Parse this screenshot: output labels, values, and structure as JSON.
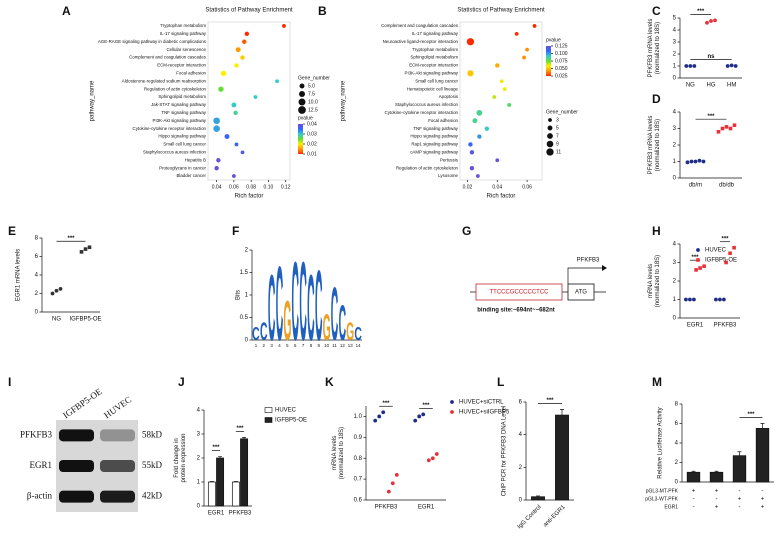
{
  "chart_data": [
    {
      "panel": "A",
      "type": "bubble",
      "title": "Statistics of Pathway Enrichment",
      "ylabel": "pathway_name",
      "xlabel": "Rich factor",
      "categories": [
        "Tryptophan metabolism",
        "IL-17 signaling pathway",
        "AGE-RAGE signaling pathway in diabetic complications",
        "Cellular senescence",
        "Complement and coagulation cascades",
        "ECM-receptor interaction",
        "Focal adhesion",
        "Aldosterone-regulated sodium reabsorption",
        "Regulation of actin cytoskeleton",
        "Sphingolipid metabolism",
        "Jak-STAT signaling pathway",
        "TNF signaling pathway",
        "PI3K-Akt signaling pathway",
        "Cytokine-cytokine receptor interaction",
        "Hippo signaling pathway",
        "Small cell lung cancer",
        "Staphylococcus aureus infection",
        "Hepatitis B",
        "Proteoglycans in cancer",
        "Bladder cancer"
      ],
      "values": [
        0.118,
        0.075,
        0.072,
        0.065,
        0.07,
        0.063,
        0.048,
        0.11,
        0.045,
        0.085,
        0.06,
        0.062,
        0.04,
        0.04,
        0.052,
        0.063,
        0.07,
        0.042,
        0.04,
        0.06
      ],
      "sizes": [
        3,
        4,
        4,
        5,
        4,
        4,
        6,
        3,
        6,
        3,
        5,
        4,
        9,
        9,
        5,
        3,
        3,
        4,
        4,
        3
      ],
      "pvalues": [
        0.01,
        0.008,
        0.012,
        0.015,
        0.018,
        0.02,
        0.02,
        0.03,
        0.025,
        0.03,
        0.03,
        0.028,
        0.032,
        0.032,
        0.035,
        0.036,
        0.038,
        0.04,
        0.042,
        0.045
      ],
      "xlim": [
        0.03,
        0.125
      ],
      "xticks": [
        0.04,
        0.06,
        0.08,
        {
          "value": 0.1,
          "label": "0.10"
        },
        0.12
      ],
      "size_title": "Gene_number",
      "size_ticks": [
        {
          "value": 5,
          "label": "5.0"
        },
        7.5,
        {
          "value": 10,
          "label": "10.0"
        },
        12.5
      ],
      "color_title": "pvalue",
      "color_ticks": [
        0.04,
        0.03,
        0.02,
        0.01
      ],
      "colorscale": [
        "#ff2a00",
        "#ff9900",
        "#ffee00",
        "#66dd33",
        "#33cccc",
        "#3366ff",
        "#6a4fd8"
      ]
    },
    {
      "panel": "B",
      "type": "bubble",
      "title": "Statistics of Pathway Enrichment",
      "ylabel": "pathway_name",
      "xlabel": "Rich factor",
      "categories": [
        "Complement and coagulation cascades",
        "IL-17 signaling pathway",
        "Neuroactive ligand-receptor interaction",
        "Tryptophan metabolism",
        "Sphingolipid metabolism",
        "ECM-receptor interaction",
        "PI3K-Akt signaling pathway",
        "Small cell lung cancer",
        "Hematopoietic cell lineage",
        "Apoptosis",
        "Staphylococcus aureus infection",
        "Cytokine-cytokine receptor interaction",
        "Focal adhesion",
        "TNF signaling pathway",
        "Hippo signaling pathway",
        "Rap1 signaling pathway",
        "cAMP signaling pathway",
        "Pertussis",
        "Regulation of actin cytoskeleton",
        "Lysosome"
      ],
      "values": [
        0.065,
        0.053,
        0.022,
        0.06,
        0.058,
        0.04,
        0.022,
        0.043,
        0.045,
        0.038,
        0.048,
        0.028,
        0.025,
        0.033,
        0.028,
        0.022,
        0.023,
        0.04,
        0.023,
        0.027
      ],
      "sizes": [
        3,
        3,
        11,
        3,
        3,
        4,
        8,
        3,
        3,
        3,
        3,
        7,
        5,
        4,
        4,
        4,
        4,
        3,
        4,
        3
      ],
      "pvalues": [
        0.005,
        0.01,
        0.02,
        0.04,
        0.04,
        0.045,
        0.05,
        0.06,
        0.06,
        0.065,
        0.08,
        0.085,
        0.085,
        0.09,
        0.1,
        0.11,
        0.12,
        0.125,
        0.13,
        0.135
      ],
      "xlim": [
        0.015,
        0.07
      ],
      "xticks": [
        0.02,
        0.04,
        0.06
      ],
      "size_title": "Gene_number",
      "size_ticks": [
        3,
        5,
        7,
        9,
        11
      ],
      "color_title": "pvalue",
      "color_ticks": [
        0.125,
        {
          "value": 0.1,
          "label": "0.100"
        },
        0.075,
        {
          "value": 0.05,
          "label": "0.050"
        },
        0.025
      ],
      "colorscale": [
        "#ff2a00",
        "#ff9900",
        "#ffee00",
        "#66dd33",
        "#33cccc",
        "#3366ff",
        "#6a4fd8"
      ]
    },
    {
      "panel": "C",
      "type": "dot",
      "ylabel": [
        "PFKFB3 mRNA levels",
        "(normalized to 18S)"
      ],
      "categories": [
        "NG",
        "HG",
        "HM"
      ],
      "colors": [
        "#1f2d8a",
        "#e8313a",
        "#1f2d8a"
      ],
      "values": [
        [
          1,
          1,
          1
        ],
        [
          4.6,
          4.75,
          4.8
        ],
        [
          1,
          1.05,
          1
        ]
      ],
      "ylim": [
        0,
        5
      ],
      "yticks": [
        0,
        1,
        2,
        3,
        4,
        5
      ],
      "annotations": [
        {
          "text": "***",
          "between": [
            0,
            1
          ]
        },
        {
          "text": "ns",
          "between": [
            0,
            2
          ]
        }
      ]
    },
    {
      "panel": "D",
      "type": "dot",
      "ylabel": [
        "PFKFB3 mRNA levels",
        "(normalized to 18S)"
      ],
      "categories": [
        "db/m",
        "db/db"
      ],
      "colors": [
        "#1f2d8a",
        "#e8313a"
      ],
      "markers": [
        "circle",
        "square"
      ],
      "values": [
        [
          0.95,
          1,
          1,
          1.05,
          1
        ],
        [
          2.8,
          3,
          3.1,
          3,
          3.2
        ]
      ],
      "ylim": [
        0,
        4
      ],
      "yticks": [
        0,
        1,
        2,
        3,
        4
      ],
      "annotations": [
        {
          "text": "***",
          "between": [
            0,
            1
          ]
        }
      ]
    },
    {
      "panel": "E",
      "type": "dot",
      "ylabel": "EGR1 mRNA levels",
      "categories": [
        "NG",
        "IGFBP5-OE"
      ],
      "colors": [
        "#333333",
        "#333333"
      ],
      "markers": [
        "circle",
        "square"
      ],
      "values": [
        [
          2,
          2.3,
          2.5
        ],
        [
          6.5,
          6.8,
          7
        ]
      ],
      "ylim": [
        0,
        8
      ],
      "yticks": [
        0,
        2,
        4,
        6,
        8
      ],
      "annotations": [
        {
          "text": "***",
          "between": [
            0,
            1
          ]
        }
      ]
    },
    {
      "panel": "F",
      "type": "logo",
      "ylabel": "Bits",
      "ylim": [
        0,
        2
      ],
      "yticks": [
        0,
        0.5,
        1,
        1.5,
        2
      ],
      "positions": [
        1,
        2,
        3,
        4,
        5,
        6,
        7,
        8,
        9,
        10,
        11,
        12,
        13,
        14
      ],
      "letters": [
        "C",
        "C",
        "C",
        "C",
        "G",
        "C",
        "C",
        "C",
        "C",
        "G",
        "C",
        "C",
        "G",
        "C"
      ],
      "bits": [
        0.3,
        0.4,
        1.5,
        1.7,
        0.9,
        1.8,
        1.8,
        1.5,
        1.6,
        0.6,
        1.2,
        0.8,
        0.4,
        0.3
      ],
      "letter_colors": {
        "C": "#1f5fbf",
        "G": "#f0a020"
      }
    },
    {
      "panel": "G",
      "type": "diagram",
      "sequence": "TTCCCGCCCCCTCC",
      "gene": "PFKFB3",
      "start": "ATG",
      "caption": "binding site:−694nt~−682nt"
    },
    {
      "panel": "H",
      "type": "dot",
      "ylabel": [
        "mRNA levels",
        "(normalized to 18S)"
      ],
      "categories": [
        "EGR1",
        "PFKFB3"
      ],
      "series": [
        {
          "name": "HUVEC",
          "color": "#1f2d8a",
          "marker": "circle",
          "values": [
            [
              1,
              1,
              1
            ],
            [
              1,
              1,
              1
            ]
          ]
        },
        {
          "name": "IGFBP5-OE",
          "color": "#e8313a",
          "marker": "square",
          "values": [
            [
              2.6,
              2.7,
              2.8
            ],
            [
              3,
              3.5,
              3.8
            ]
          ]
        }
      ],
      "ylim": [
        0,
        4
      ],
      "yticks": [
        0,
        1,
        2,
        3,
        4
      ],
      "annotations": [
        {
          "text": "***",
          "category": 0
        },
        {
          "text": "***",
          "category": 1
        }
      ]
    },
    {
      "panel": "I",
      "type": "blot",
      "lanes": [
        "IGFBP5-OE",
        "HUVEC"
      ],
      "proteins": [
        "PFKFB3",
        "EGR1",
        "β-actin"
      ],
      "sizes": [
        "58kD",
        "55kD",
        "42kD"
      ]
    },
    {
      "panel": "J",
      "type": "bar",
      "ylabel": [
        "Fold change in",
        "protein expression"
      ],
      "categories": [
        "EGR1",
        "PFKFB3"
      ],
      "series": [
        {
          "name": "HUVEC",
          "color": "#ffffff",
          "values": [
            1,
            1
          ],
          "errors": [
            0.02,
            0.02
          ]
        },
        {
          "name": "IGFBP5-OE",
          "color": "#222222",
          "values": [
            2,
            2.8
          ],
          "errors": [
            0.06,
            0.06
          ]
        }
      ],
      "ylim": [
        0,
        4
      ],
      "yticks": [
        0,
        1,
        2,
        3,
        4
      ],
      "annotations": [
        {
          "text": "***",
          "category": 0
        },
        {
          "text": "***",
          "category": 1
        }
      ]
    },
    {
      "panel": "K",
      "type": "dot",
      "ylabel": [
        "mRNA levels",
        "(normalized to 18S)"
      ],
      "categories": [
        "PFKFB3",
        "EGR1"
      ],
      "series": [
        {
          "name": "HUVEC+siCTRL",
          "color": "#1f2d8a",
          "marker": "circle",
          "values": [
            [
              0.98,
              1,
              1.02
            ],
            [
              0.98,
              1,
              1.01
            ]
          ]
        },
        {
          "name": "HUVEC+siIGFBP5",
          "color": "#e8313a",
          "marker": "circle",
          "values": [
            [
              0.64,
              0.68,
              0.72
            ],
            [
              0.79,
              0.8,
              0.82
            ]
          ]
        }
      ],
      "ylim": [
        0.6,
        1.05
      ],
      "yticks": [
        0.6,
        0.7,
        0.8,
        0.9,
        {
          "value": 1,
          "label": "1.0"
        }
      ],
      "annotations": [
        {
          "text": "***",
          "category": 0
        },
        {
          "text": "***",
          "category": 1
        }
      ]
    },
    {
      "panel": "L",
      "type": "bar",
      "ylabel": "ChIP PCR for PFKFB3 DNA Level",
      "categories": [
        "IgG Control",
        "anti-EGR1"
      ],
      "values": [
        0.2,
        5.2
      ],
      "errors": [
        0.05,
        0.35
      ],
      "color": "#222222",
      "ylim": [
        0,
        6
      ],
      "yticks": [
        0,
        2,
        4,
        6
      ],
      "annotations": [
        {
          "text": "***",
          "between": [
            0,
            1
          ]
        }
      ]
    },
    {
      "panel": "M",
      "type": "bar",
      "ylabel": "Relative Luciferase Activity",
      "categories": [
        null,
        null,
        null,
        null
      ],
      "values": [
        1,
        1,
        2.7,
        5.5
      ],
      "errors": [
        0.1,
        0.1,
        0.4,
        0.5
      ],
      "color": "#222222",
      "ylim": [
        0,
        8
      ],
      "yticks": [
        0,
        2,
        4,
        6,
        8
      ],
      "annotations": [
        {
          "text": "***",
          "between": [
            2,
            3
          ]
        }
      ],
      "table": [
        {
          "label": "pGL3-MT-PFK",
          "marks": [
            "+",
            "+",
            "-",
            "-"
          ]
        },
        {
          "label": "pGL3-WT-PFK",
          "marks": [
            "-",
            "-",
            "+",
            "+"
          ]
        },
        {
          "label": "EGR1",
          "marks": [
            "-",
            "+",
            "-",
            "+"
          ]
        }
      ]
    }
  ]
}
